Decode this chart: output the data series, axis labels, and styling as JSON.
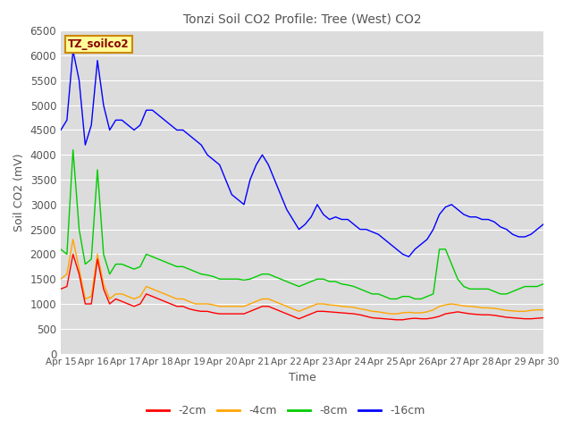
{
  "title": "Tonzi Soil CO2 Profile: Tree (West) CO2",
  "xlabel": "Time",
  "ylabel": "Soil CO2 (mV)",
  "ylim": [
    0,
    6500
  ],
  "yticks": [
    0,
    500,
    1000,
    1500,
    2000,
    2500,
    3000,
    3500,
    4000,
    4500,
    5000,
    5500,
    6000,
    6500
  ],
  "legend_label": "TZ_soilco2",
  "line_labels": [
    "-2cm",
    "-4cm",
    "-8cm",
    "-16cm"
  ],
  "line_colors": [
    "#ff0000",
    "#ffa500",
    "#00cc00",
    "#0000ff"
  ],
  "background_color": "#dcdcdc",
  "grid_color": "#ffffff",
  "title_color": "#555555",
  "axis_label_color": "#555555",
  "tick_label_color": "#555555",
  "box_facecolor": "#ffff99",
  "box_edgecolor": "#cc8800",
  "box_textcolor": "#880000",
  "blue_base": [
    4500,
    4700,
    6100,
    5500,
    4200,
    4600,
    5900,
    5000,
    4500,
    4700,
    4700,
    4600,
    4500,
    4600,
    4900,
    4900,
    4800,
    4700,
    4600,
    4500,
    4500,
    4400,
    4300,
    4200,
    4000,
    3900,
    3800,
    3500,
    3200,
    3100,
    3000,
    3500,
    3800,
    4000,
    3800,
    3500,
    3200,
    2900,
    2700,
    2500,
    2600,
    2750,
    3000,
    2800,
    2700,
    2750,
    2700,
    2700,
    2600,
    2500,
    2500,
    2450,
    2400,
    2300,
    2200,
    2100,
    2000,
    1950,
    2100,
    2200,
    2300,
    2500,
    2800,
    2950,
    3000,
    2900,
    2800,
    2750,
    2750,
    2700,
    2700,
    2650,
    2550,
    2500,
    2400,
    2350,
    2350,
    2400,
    2500,
    2600
  ],
  "green_base": [
    2100,
    2000,
    4100,
    2500,
    1800,
    1900,
    3700,
    2000,
    1600,
    1800,
    1800,
    1750,
    1700,
    1750,
    2000,
    1950,
    1900,
    1850,
    1800,
    1750,
    1750,
    1700,
    1650,
    1600,
    1580,
    1550,
    1500,
    1500,
    1500,
    1500,
    1480,
    1500,
    1550,
    1600,
    1600,
    1550,
    1500,
    1450,
    1400,
    1350,
    1400,
    1450,
    1500,
    1500,
    1450,
    1450,
    1400,
    1380,
    1350,
    1300,
    1250,
    1200,
    1200,
    1150,
    1100,
    1100,
    1150,
    1150,
    1100,
    1100,
    1150,
    1200,
    2100,
    2100,
    1800,
    1500,
    1350,
    1300,
    1300,
    1300,
    1300,
    1250,
    1200,
    1200,
    1250,
    1300,
    1350,
    1350,
    1350,
    1400
  ],
  "orange_base": [
    1500,
    1600,
    2300,
    1700,
    1100,
    1150,
    2000,
    1400,
    1100,
    1200,
    1200,
    1150,
    1100,
    1150,
    1350,
    1300,
    1250,
    1200,
    1150,
    1100,
    1100,
    1050,
    1000,
    1000,
    1000,
    980,
    950,
    950,
    950,
    950,
    950,
    1000,
    1050,
    1100,
    1100,
    1050,
    1000,
    950,
    900,
    850,
    900,
    950,
    1000,
    1000,
    980,
    970,
    950,
    940,
    930,
    900,
    880,
    850,
    840,
    820,
    800,
    800,
    820,
    830,
    820,
    820,
    840,
    880,
    950,
    980,
    1000,
    980,
    960,
    950,
    940,
    920,
    920,
    910,
    890,
    870,
    860,
    850,
    850,
    870,
    880,
    880
  ],
  "red_base": [
    1300,
    1350,
    2000,
    1600,
    1000,
    1000,
    1900,
    1300,
    1000,
    1100,
    1050,
    1000,
    950,
    1000,
    1200,
    1150,
    1100,
    1050,
    1000,
    950,
    950,
    900,
    870,
    850,
    850,
    820,
    800,
    800,
    800,
    800,
    800,
    850,
    900,
    950,
    950,
    900,
    850,
    800,
    750,
    700,
    750,
    800,
    850,
    850,
    840,
    830,
    820,
    810,
    800,
    780,
    750,
    720,
    710,
    700,
    690,
    680,
    680,
    700,
    710,
    700,
    700,
    720,
    750,
    800,
    820,
    840,
    820,
    800,
    790,
    780,
    780,
    770,
    750,
    730,
    720,
    710,
    700,
    700,
    710,
    720
  ]
}
